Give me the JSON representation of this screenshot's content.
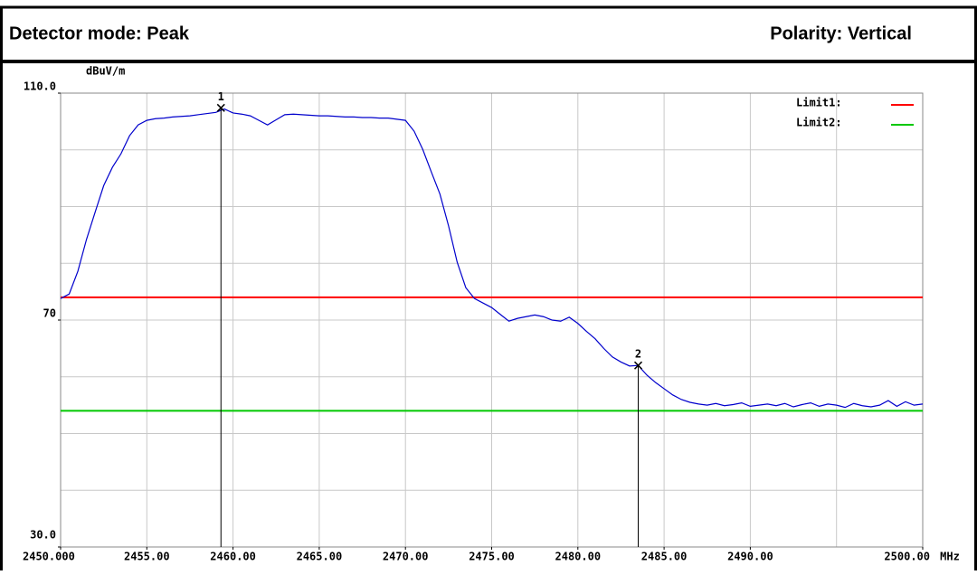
{
  "header": {
    "left": "Detector mode: Peak",
    "right": "Polarity: Vertical"
  },
  "chart_data": {
    "type": "line",
    "y_unit": "dBuV/m",
    "x_unit": "MHz",
    "xlim": [
      2450,
      2500
    ],
    "ylim": [
      30,
      110
    ],
    "xticks": [
      {
        "value": 2450,
        "label": "2450.000"
      },
      {
        "value": 2455,
        "label": "2455.00"
      },
      {
        "value": 2460,
        "label": "2460.00"
      },
      {
        "value": 2465,
        "label": "2465.00"
      },
      {
        "value": 2470,
        "label": "2470.00"
      },
      {
        "value": 2475,
        "label": "2475.00"
      },
      {
        "value": 2480,
        "label": "2480.00"
      },
      {
        "value": 2485,
        "label": "2485.00"
      },
      {
        "value": 2490,
        "label": "2490.00"
      },
      {
        "value": 2500,
        "label": "2500.00"
      }
    ],
    "xgrid": [
      2455,
      2460,
      2465,
      2470,
      2475,
      2480,
      2485,
      2490,
      2495
    ],
    "yticks": [
      {
        "value": 30,
        "label": "30.0"
      },
      70,
      {
        "value": 110,
        "label": "110.0"
      }
    ],
    "ygrid": [
      40,
      50,
      60,
      70,
      80,
      90,
      100
    ],
    "grid": true,
    "limits": [
      {
        "name": "Limit1:",
        "color": "#ff0000",
        "value": 74
      },
      {
        "name": "Limit2:",
        "color": "#00c800",
        "value": 54
      }
    ],
    "legend": "top-right",
    "markers": [
      {
        "label": "1",
        "x": 2459.3,
        "y": 107.4
      },
      {
        "label": "2",
        "x": 2483.5,
        "y": 62.0
      }
    ],
    "series": [
      {
        "color": "#0000cc",
        "x": [
          2450,
          2450.5,
          2451,
          2451.5,
          2452,
          2452.5,
          2453,
          2453.5,
          2454,
          2454.5,
          2455,
          2455.5,
          2456,
          2456.5,
          2457,
          2457.5,
          2458,
          2458.5,
          2459,
          2459.5,
          2460,
          2460.5,
          2461,
          2461.5,
          2462,
          2462.5,
          2463,
          2463.5,
          2464,
          2464.5,
          2465,
          2465.5,
          2466,
          2466.5,
          2467,
          2467.5,
          2468,
          2468.5,
          2469,
          2469.5,
          2470,
          2470.5,
          2471,
          2471.5,
          2472,
          2472.5,
          2473,
          2473.5,
          2474,
          2474.5,
          2475,
          2475.5,
          2476,
          2476.5,
          2477,
          2477.5,
          2478,
          2478.5,
          2479,
          2479.5,
          2480,
          2480.5,
          2481,
          2481.5,
          2482,
          2482.5,
          2483,
          2483.5,
          2484,
          2484.5,
          2485,
          2485.5,
          2486,
          2486.5,
          2487,
          2487.5,
          2488,
          2488.5,
          2489,
          2489.5,
          2490,
          2490.5,
          2491,
          2491.5,
          2492,
          2492.5,
          2493,
          2493.5,
          2494,
          2494.5,
          2495,
          2495.5,
          2496,
          2496.5,
          2497,
          2497.5,
          2498,
          2498.5,
          2499,
          2499.5,
          2500
        ],
        "values": [
          73.8,
          74.6,
          78.6,
          84.2,
          89.0,
          93.7,
          96.9,
          99.3,
          102.5,
          104.4,
          105.2,
          105.5,
          105.6,
          105.8,
          105.9,
          106.0,
          106.2,
          106.4,
          106.6,
          107.2,
          106.5,
          106.3,
          106.0,
          105.2,
          104.4,
          105.3,
          106.2,
          106.3,
          106.2,
          106.1,
          106.0,
          106.0,
          105.9,
          105.8,
          105.8,
          105.7,
          105.7,
          105.6,
          105.6,
          105.4,
          105.2,
          103.3,
          100.1,
          96.1,
          92.2,
          86.6,
          80.2,
          75.7,
          73.8,
          73.0,
          72.2,
          71.0,
          69.8,
          70.3,
          70.6,
          70.9,
          70.6,
          70.0,
          69.8,
          70.5,
          69.4,
          68.0,
          66.7,
          65.0,
          63.5,
          62.6,
          61.9,
          62.0,
          60.3,
          59.0,
          57.9,
          56.8,
          56.0,
          55.5,
          55.2,
          55.0,
          55.3,
          54.9,
          55.1,
          55.4,
          54.8,
          55.0,
          55.2,
          54.9,
          55.3,
          54.7,
          55.1,
          55.4,
          54.8,
          55.2,
          55.0,
          54.6,
          55.3,
          54.9,
          54.7,
          55.0,
          55.8,
          54.8,
          55.6,
          55.0,
          55.2
        ]
      }
    ]
  }
}
